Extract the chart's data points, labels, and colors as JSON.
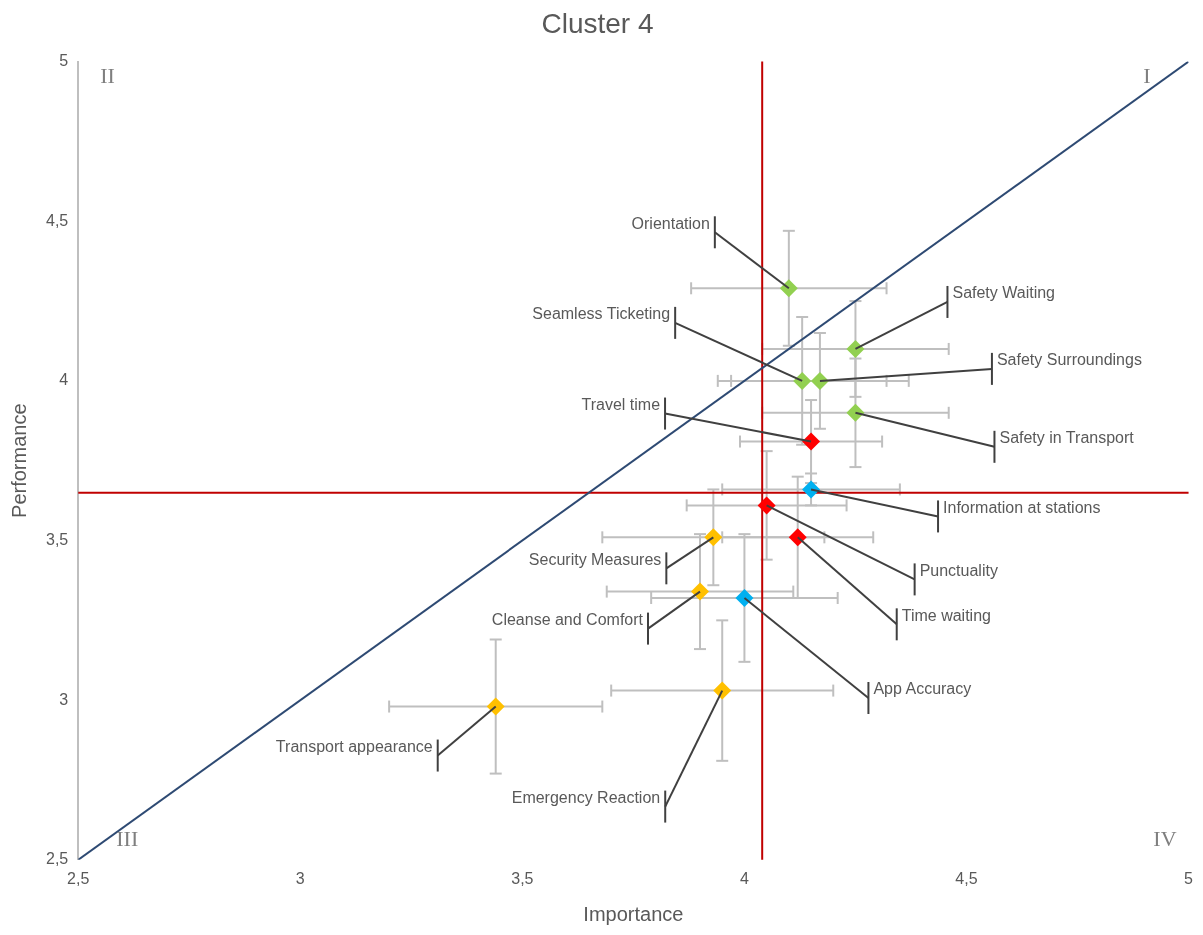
{
  "chart_data": {
    "type": "scatter",
    "title": "Cluster 4",
    "xlabel": "Importance",
    "ylabel": "Performance",
    "xlim": [
      2.5,
      5
    ],
    "ylim": [
      2.5,
      5
    ],
    "xticks": [
      {
        "value": 2.5,
        "label": "2,5"
      },
      3,
      {
        "value": 3.5,
        "label": "3,5"
      },
      4,
      {
        "value": 4.5,
        "label": "4,5"
      },
      5
    ],
    "yticks": [
      {
        "value": 2.5,
        "label": "2,5"
      },
      3,
      {
        "value": 3.5,
        "label": "3,5"
      },
      4,
      {
        "value": 4.5,
        "label": "4,5"
      },
      5
    ],
    "grid": false,
    "legend": false,
    "marker": "diamond",
    "series": [
      {
        "x": [
          4.1,
          4.25,
          4.13,
          4.17,
          4.25,
          4.15,
          4.15,
          4.05,
          4.12,
          3.93,
          3.9,
          4.0,
          3.95,
          3.44
        ],
        "values": [
          4.29,
          4.1,
          4.0,
          4.0,
          3.9,
          3.81,
          3.66,
          3.61,
          3.51,
          3.51,
          3.34,
          3.32,
          3.03,
          2.98
        ],
        "colors": [
          "#92d050",
          "#92d050",
          "#92d050",
          "#92d050",
          "#92d050",
          "#ff0000",
          "#00b0f0",
          "#ff0000",
          "#ff0000",
          "#ffc000",
          "#ffc000",
          "#00b0f0",
          "#ffc000",
          "#ffc000"
        ],
        "errors": [
          0.18,
          0.15,
          0.2,
          0.15,
          0.17,
          0.13,
          0.05,
          0.17,
          0.19,
          0.15,
          0.18,
          0.2,
          0.22,
          0.21
        ],
        "xerrors": [
          0.22,
          0.21,
          0.19,
          0.2,
          0.21,
          0.16,
          0.2,
          0.18,
          0.17,
          0.25,
          0.21,
          0.21,
          0.25,
          0.24
        ]
      },
      {
        "type": "line",
        "x": [
          2.5,
          5
        ],
        "values": [
          2.5,
          5
        ],
        "color": "#2e4a73",
        "marker": "none"
      }
    ],
    "ref_lines": [
      {
        "axis": "x",
        "value": 4.04,
        "color": "#c00000"
      },
      {
        "axis": "y",
        "value": 3.65,
        "color": "#c00000"
      }
    ],
    "annotations": [
      {
        "text": "Orientation",
        "x": 4.1,
        "y": 4.29
      },
      {
        "text": "Safety Waiting",
        "x": 4.25,
        "y": 4.1
      },
      {
        "text": "Seamless Ticketing",
        "x": 4.13,
        "y": 4.0
      },
      {
        "text": "Safety Surroundings",
        "x": 4.17,
        "y": 4.0
      },
      {
        "text": "Safety in Transport",
        "x": 4.25,
        "y": 3.9
      },
      {
        "text": "Travel time",
        "x": 4.15,
        "y": 3.81
      },
      {
        "text": "Information at stations",
        "x": 4.15,
        "y": 3.66
      },
      {
        "text": "Punctuality",
        "x": 4.05,
        "y": 3.61
      },
      {
        "text": "Time waiting",
        "x": 4.12,
        "y": 3.51
      },
      {
        "text": "Security Measures",
        "x": 3.93,
        "y": 3.51
      },
      {
        "text": "Cleanse and Comfort",
        "x": 3.9,
        "y": 3.34
      },
      {
        "text": "App Accuracy",
        "x": 4.0,
        "y": 3.32
      },
      {
        "text": "Emergency Reaction",
        "x": 3.95,
        "y": 3.03
      },
      {
        "text": "Transport appearance",
        "x": 3.44,
        "y": 2.98
      },
      "II",
      "I",
      "III",
      "IV"
    ]
  }
}
